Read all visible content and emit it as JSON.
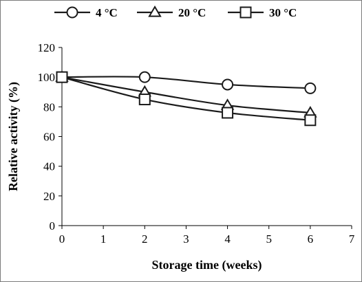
{
  "chart_data": {
    "type": "line",
    "xlabel": "Storage time (weeks)",
    "ylabel": "Relative activity (%)",
    "xlim": [
      0,
      7
    ],
    "ylim": [
      0,
      120
    ],
    "x_ticks": [
      0,
      1,
      2,
      3,
      4,
      5,
      6,
      7
    ],
    "y_ticks": [
      0,
      20,
      40,
      60,
      80,
      100,
      120
    ],
    "grid": false,
    "legend_position": "top",
    "series": [
      {
        "name": "4 °C",
        "marker": "circle",
        "x": [
          0,
          2,
          4,
          6
        ],
        "y": [
          100,
          100,
          95,
          92.5
        ]
      },
      {
        "name": "20 °C",
        "marker": "triangle",
        "x": [
          0,
          2,
          4,
          6
        ],
        "y": [
          100,
          90,
          81,
          76
        ]
      },
      {
        "name": "30 °C",
        "marker": "square",
        "x": [
          0,
          2,
          4,
          6
        ],
        "y": [
          100,
          85,
          76,
          71
        ]
      }
    ],
    "line_color": "#1a1a1a"
  }
}
